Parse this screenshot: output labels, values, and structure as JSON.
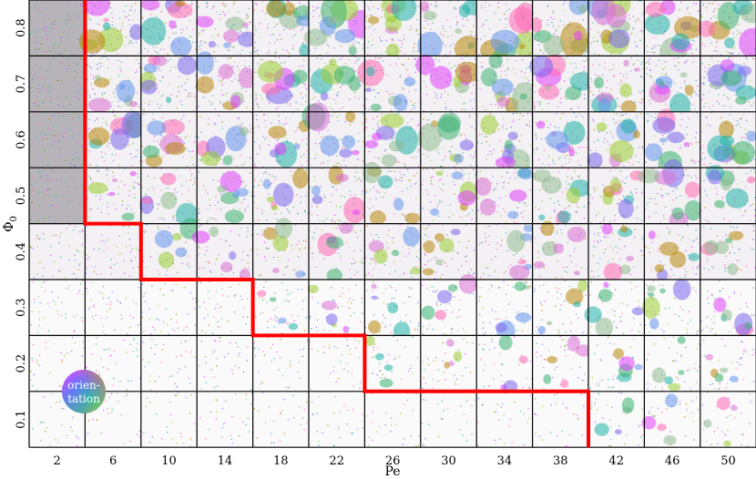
{
  "chart_data": {
    "type": "heatmap",
    "xlabel": "Pe",
    "ylabel": "Φ",
    "ylabel_subscript": "0",
    "x": [
      "2",
      "6",
      "10",
      "14",
      "18",
      "22",
      "26",
      "30",
      "34",
      "38",
      "42",
      "46",
      "50"
    ],
    "y": [
      "0.8",
      "0.7",
      "0.6",
      "0.5",
      "0.4",
      "0.3",
      "0.2",
      "0.1"
    ],
    "phase_boundary_first_separated_column": [
      1,
      1,
      1,
      1,
      2,
      4,
      6,
      10
    ],
    "legend": {
      "line1": "orien-",
      "line2": "tation"
    },
    "colors": {
      "boundary": "#ff0000",
      "grid": "#000000",
      "background": "#ffffff"
    }
  }
}
